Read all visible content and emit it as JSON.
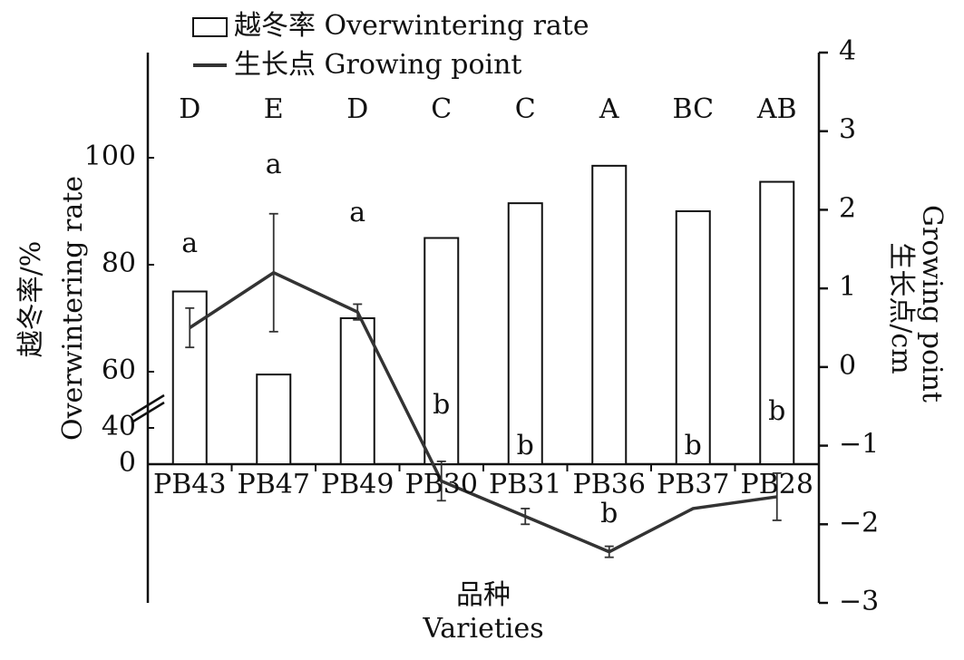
{
  "chart_data": {
    "type": "bar",
    "categories": [
      "PB43",
      "PB47",
      "PB49",
      "PB30",
      "PB31",
      "PB36",
      "PB37",
      "PB28"
    ],
    "series": [
      {
        "name": "越冬率 Overwintering rate",
        "type": "bar",
        "color": "#ffffff",
        "values": [
          75,
          59,
          70,
          85,
          91.5,
          98.5,
          90,
          95.5
        ]
      },
      {
        "name": "生长点 Growing point",
        "type": "line",
        "axis": "y2",
        "color": "#333333",
        "values": [
          0.5,
          1.2,
          0.7,
          -1.45,
          -1.9,
          -2.35,
          -1.8,
          -1.65
        ],
        "errors": [
          0.25,
          0.75,
          0.1,
          0.25,
          0.1,
          0.07,
          null,
          0.3
        ]
      }
    ],
    "ylim": [
      0,
      120
    ],
    "y_break": [
      40,
      60
    ],
    "yticks": [
      0,
      40,
      60,
      80,
      100
    ],
    "y2lim": [
      -3,
      4
    ],
    "y2ticks": [
      {
        "value": -3,
        "label": "−3"
      },
      {
        "value": -2,
        "label": "−2"
      },
      {
        "value": -1,
        "label": "−1"
      },
      0,
      1,
      2,
      3,
      4
    ],
    "y_title": [
      "越冬率/%",
      "Overwintering rate"
    ],
    "y2_title": [
      "生长点/cm",
      "Growing point"
    ],
    "x_title": [
      "品种",
      "Varieties"
    ],
    "bar_letters": [
      "D",
      "E",
      "D",
      "C",
      "C",
      "A",
      "BC",
      "AB"
    ],
    "line_letters": [
      "a",
      "a",
      "a",
      "b",
      "b",
      "b",
      "b",
      "b"
    ]
  }
}
